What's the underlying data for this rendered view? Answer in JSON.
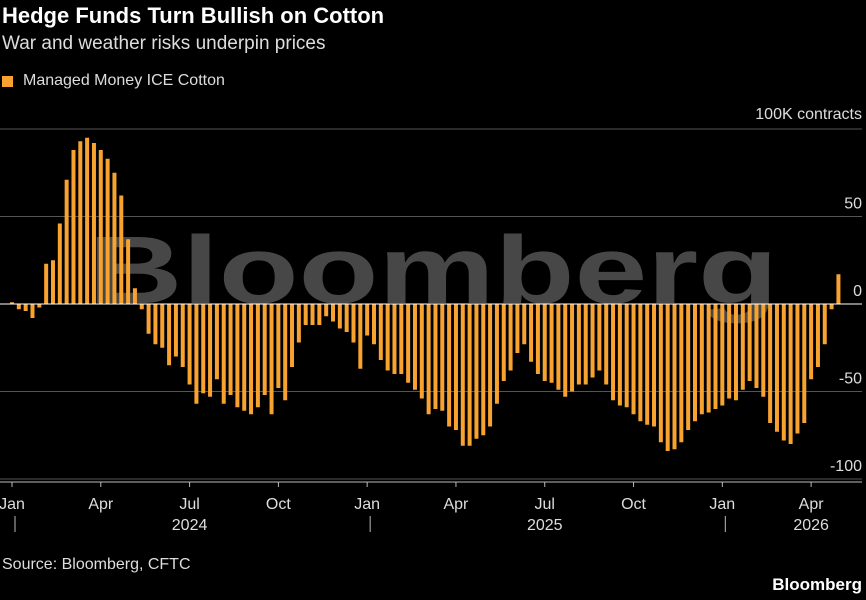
{
  "title": "Hedge Funds Turn Bullish on Cotton",
  "subtitle": "War and weather risks underpin prices",
  "source": "Source: Bloomberg, CFTC",
  "brand": "Bloomberg",
  "watermark": "Bloomberg",
  "colors": {
    "bar": "#f8a330",
    "background": "#000000",
    "grid": "#555555",
    "text": "#dddddd"
  },
  "chart_data": {
    "type": "bar",
    "unit_label": "100K contracts",
    "ylim": [
      -100,
      100
    ],
    "yticks": [
      {
        "value": 50,
        "label": "50"
      },
      {
        "value": 0,
        "label": "0"
      },
      {
        "value": -50,
        "label": "-50"
      },
      {
        "value": -100,
        "label": "-100"
      }
    ],
    "grid": true,
    "legend": {
      "placement": "top-left",
      "entries": [
        "Managed Money ICE Cotton"
      ]
    },
    "series": [
      {
        "name": "Managed Money ICE Cotton",
        "values": [
          1,
          -3,
          -4,
          -8,
          -2,
          23,
          25,
          46,
          71,
          88,
          93,
          95,
          92,
          88,
          83,
          75,
          62,
          37,
          9,
          -3,
          -17,
          -23,
          -25,
          -35,
          -30,
          -36,
          -46,
          -57,
          -51,
          -53,
          -43,
          -57,
          -52,
          -59,
          -61,
          -63,
          -59,
          -52,
          -63,
          -48,
          -55,
          -36,
          -22,
          -12,
          -12,
          -12,
          -7,
          -10,
          -14,
          -16,
          -22,
          -37,
          -18,
          -23,
          -32,
          -38,
          -40,
          -40,
          -45,
          -49,
          -54,
          -63,
          -60,
          -61,
          -70,
          -72,
          -81,
          -81,
          -77,
          -75,
          -70,
          -57,
          -44,
          -38,
          -28,
          -23,
          -33,
          -40,
          -44,
          -45,
          -49,
          -53,
          -50,
          -46,
          -46,
          -42,
          -38,
          -46,
          -55,
          -58,
          -59,
          -63,
          -67,
          -69,
          -70,
          -79,
          -84,
          -83,
          -79,
          -72,
          -67,
          -63,
          -62,
          -60,
          -58,
          -54,
          -55,
          -49,
          -44,
          -48,
          -53,
          -68,
          -73,
          -78,
          -80,
          -74,
          -68,
          -43,
          -36,
          -23,
          -3,
          17
        ]
      }
    ],
    "x_ticks": [
      {
        "index": 0,
        "label": "Jan"
      },
      {
        "index": 13,
        "label": "Apr"
      },
      {
        "index": 26,
        "label": "Jul"
      },
      {
        "index": 39,
        "label": "Oct"
      },
      {
        "index": 52,
        "label": "Jan"
      },
      {
        "index": 65,
        "label": "Apr"
      },
      {
        "index": 78,
        "label": "Jul"
      },
      {
        "index": 91,
        "label": "Oct"
      },
      {
        "index": 104,
        "label": "Jan"
      },
      {
        "index": 117,
        "label": "Apr"
      }
    ],
    "year_separators": [
      0,
      52,
      104
    ],
    "year_labels": [
      {
        "index": 26,
        "label": "2024"
      },
      {
        "index": 78,
        "label": "2025"
      },
      {
        "index": 117,
        "label": "2026"
      }
    ]
  }
}
